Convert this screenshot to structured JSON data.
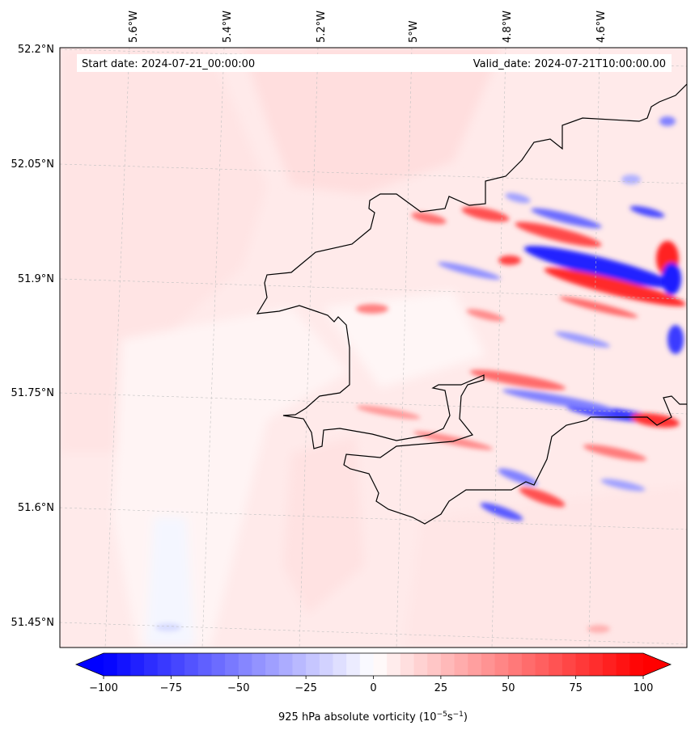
{
  "map": {
    "start_date_label": "Start date: 2024-07-21_00:00:00",
    "valid_date_label": "Valid_date: 2024-07-21T10:00:00.00",
    "lon_ticks": [
      "5.6°W",
      "5.4°W",
      "5.2°W",
      "5°W",
      "4.8°W",
      "4.6°W"
    ],
    "lat_ticks": [
      "52.2°N",
      "52.05°N",
      "51.9°N",
      "51.75°N",
      "51.6°N",
      "51.45°N"
    ],
    "field": "925 hPa absolute vorticity",
    "colors": {
      "negative": "#0000ff",
      "positive": "#ff0000",
      "background_pink": "#ffe6e6",
      "coastline": "#000000",
      "grid": "#bbbbbb"
    }
  },
  "colorbar": {
    "label_main": "925 hPa absolute vorticity (10",
    "label_exp1": "−5",
    "label_mid": "s",
    "label_exp2": "−1",
    "label_end": ")",
    "tick_labels": [
      "−100",
      "−75",
      "−50",
      "−25",
      "0",
      "25",
      "50",
      "75",
      "100"
    ],
    "tick_values": [
      -100,
      -75,
      -50,
      -25,
      0,
      25,
      50,
      75,
      100
    ],
    "min": -100,
    "max": 100
  }
}
